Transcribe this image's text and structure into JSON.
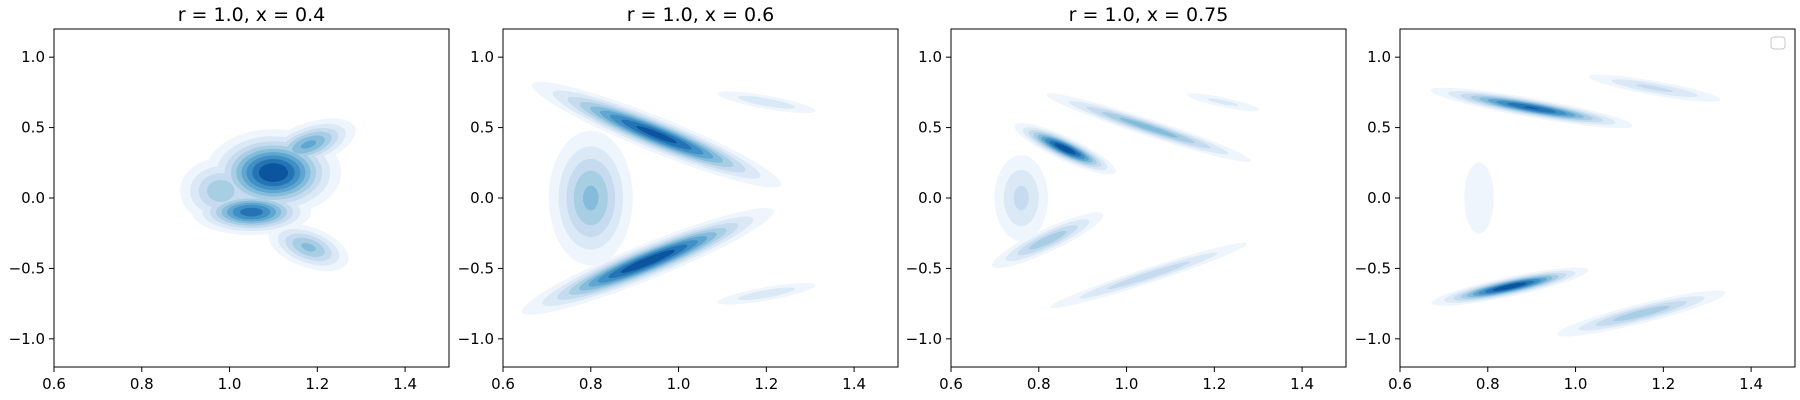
{
  "chart_data": [
    {
      "type": "contour",
      "title": "r = 1.0, x = 0.4",
      "xlim": [
        0.6,
        1.5
      ],
      "ylim": [
        -1.2,
        1.2
      ],
      "xticks": [
        "0.6",
        "0.8",
        "1.0",
        "1.2",
        "1.4"
      ],
      "yticks": [
        "1.0",
        "0.5",
        "0.0",
        "−0.5",
        "−1.0"
      ],
      "colormap": "Blues",
      "legend": false,
      "density_blobs": [
        {
          "cx": 1.1,
          "cy": 0.18,
          "rx": 0.11,
          "ry": 0.22,
          "rot": 0,
          "w": 1.0
        },
        {
          "cx": 1.05,
          "cy": -0.1,
          "rx": 0.1,
          "ry": 0.12,
          "rot": 0,
          "w": 0.85
        },
        {
          "cx": 1.18,
          "cy": 0.38,
          "rx": 0.09,
          "ry": 0.12,
          "rot": 20,
          "w": 0.6
        },
        {
          "cx": 1.18,
          "cy": -0.35,
          "rx": 0.08,
          "ry": 0.12,
          "rot": -20,
          "w": 0.5
        },
        {
          "cx": 0.98,
          "cy": 0.05,
          "rx": 0.08,
          "ry": 0.2,
          "rot": 0,
          "w": 0.45
        }
      ]
    },
    {
      "type": "contour",
      "title": "r = 1.0, x = 0.6",
      "xlim": [
        0.6,
        1.5
      ],
      "ylim": [
        -1.2,
        1.2
      ],
      "xticks": [
        "0.6",
        "0.8",
        "1.0",
        "1.2",
        "1.4"
      ],
      "yticks": [
        "1.0",
        "0.5",
        "0.0",
        "−0.5",
        "−1.0"
      ],
      "colormap": "Blues",
      "legend": false,
      "density_blobs": [
        {
          "cx": 0.95,
          "cy": 0.45,
          "rx": 0.22,
          "ry": 0.09,
          "rot": -22,
          "w": 0.95
        },
        {
          "cx": 0.93,
          "cy": -0.45,
          "rx": 0.22,
          "ry": 0.09,
          "rot": 22,
          "w": 1.0
        },
        {
          "cx": 0.8,
          "cy": 0.0,
          "rx": 0.08,
          "ry": 0.4,
          "rot": 0,
          "w": 0.5
        },
        {
          "cx": 1.2,
          "cy": 0.68,
          "rx": 0.12,
          "ry": 0.05,
          "rot": -10,
          "w": 0.25
        },
        {
          "cx": 1.2,
          "cy": -0.68,
          "rx": 0.12,
          "ry": 0.05,
          "rot": 10,
          "w": 0.25
        }
      ]
    },
    {
      "type": "contour",
      "title": "r = 1.0, x = 0.75",
      "xlim": [
        0.6,
        1.5
      ],
      "ylim": [
        -1.2,
        1.2
      ],
      "xticks": [
        "0.6",
        "0.8",
        "1.0",
        "1.2",
        "1.4"
      ],
      "yticks": [
        "1.0",
        "0.5",
        "0.0",
        "−0.5",
        "−1.0"
      ],
      "colormap": "Blues",
      "legend": false,
      "density_blobs": [
        {
          "cx": 0.86,
          "cy": 0.35,
          "rx": 0.09,
          "ry": 0.06,
          "rot": -25,
          "w": 1.0
        },
        {
          "cx": 1.05,
          "cy": 0.5,
          "rx": 0.2,
          "ry": 0.05,
          "rot": -18,
          "w": 0.55
        },
        {
          "cx": 0.82,
          "cy": -0.3,
          "rx": 0.12,
          "ry": 0.07,
          "rot": 25,
          "w": 0.45
        },
        {
          "cx": 1.05,
          "cy": -0.55,
          "rx": 0.22,
          "ry": 0.05,
          "rot": 18,
          "w": 0.35
        },
        {
          "cx": 0.76,
          "cy": 0.0,
          "rx": 0.06,
          "ry": 0.3,
          "rot": 0,
          "w": 0.3
        },
        {
          "cx": 1.22,
          "cy": 0.68,
          "rx": 0.1,
          "ry": 0.04,
          "rot": -12,
          "w": 0.2
        }
      ]
    },
    {
      "type": "contour",
      "title": "",
      "xlim": [
        0.6,
        1.5
      ],
      "ylim": [
        -1.2,
        1.2
      ],
      "xticks": [
        "0.6",
        "0.8",
        "1.0",
        "1.2",
        "1.4"
      ],
      "yticks": [
        "1.0",
        "0.5",
        "0.0",
        "−0.5",
        "−1.0"
      ],
      "colormap": "Blues",
      "legend": "upper right, empty",
      "density_blobs": [
        {
          "cx": 0.9,
          "cy": 0.64,
          "rx": 0.17,
          "ry": 0.05,
          "rot": -10,
          "w": 0.9
        },
        {
          "cx": 0.85,
          "cy": -0.63,
          "rx": 0.13,
          "ry": 0.05,
          "rot": 12,
          "w": 1.0
        },
        {
          "cx": 1.15,
          "cy": -0.82,
          "rx": 0.17,
          "ry": 0.06,
          "rot": 14,
          "w": 0.45
        },
        {
          "cx": 1.18,
          "cy": 0.78,
          "rx": 0.15,
          "ry": 0.05,
          "rot": -10,
          "w": 0.3
        },
        {
          "cx": 0.78,
          "cy": 0.0,
          "rx": 0.06,
          "ry": 0.45,
          "rot": 0,
          "w": 0.12
        }
      ]
    }
  ]
}
